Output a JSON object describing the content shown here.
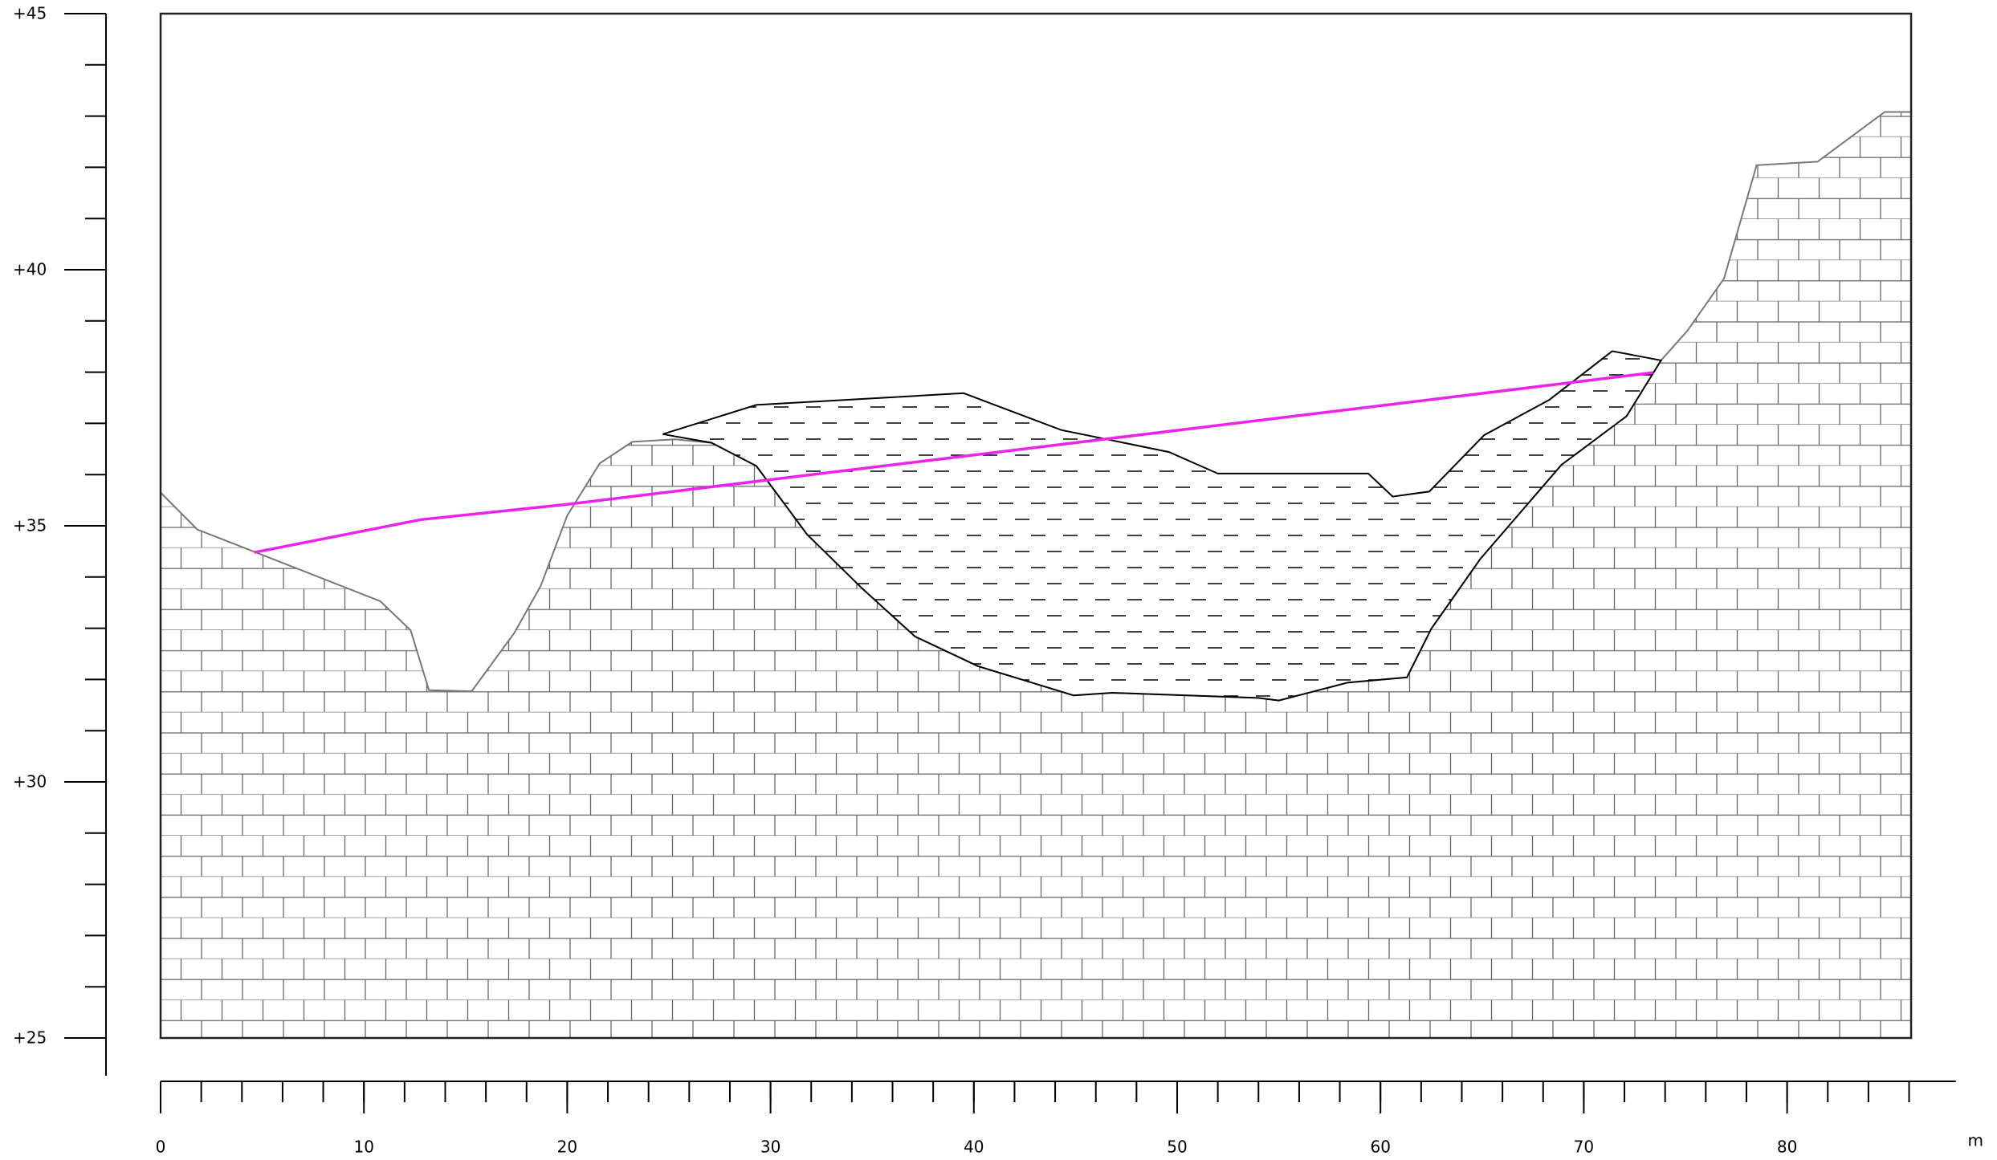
{
  "chart_data": {
    "type": "section",
    "xlim": [
      0,
      88.3
    ],
    "ylim": [
      25,
      45
    ],
    "xticks": [
      0,
      10,
      20,
      30,
      40,
      50,
      60,
      70,
      80
    ],
    "xminorticks": [
      0,
      2,
      4,
      6,
      8,
      10,
      12,
      14,
      16,
      18,
      20,
      22,
      24,
      26,
      28,
      30,
      32,
      34,
      36,
      38,
      40,
      42,
      44,
      46,
      48,
      50,
      52,
      54,
      56,
      58,
      60,
      62,
      64,
      66,
      68,
      70,
      72,
      74,
      76,
      78,
      80,
      82,
      84,
      86
    ],
    "xunit": "m",
    "yticks": [
      {
        "value": 45,
        "label": "+45"
      },
      {
        "value": 40,
        "label": "+40"
      },
      {
        "value": 35,
        "label": "+35"
      },
      {
        "value": 30,
        "label": "+30"
      },
      {
        "value": 25,
        "label": "+25"
      }
    ],
    "yminorticks": [
      25,
      26,
      27,
      28,
      29,
      30,
      31,
      32,
      33,
      34,
      35,
      36,
      37,
      38,
      39,
      40,
      41,
      42,
      43,
      44,
      45
    ],
    "section_end": 86.1,
    "ground": {
      "color": "#777777",
      "x": [
        0,
        1.8,
        10.8,
        12.3,
        13.2,
        15.3,
        17.4,
        18.7,
        20.0,
        21.6,
        23.2,
        25.3,
        27.1,
        29.3,
        31.8,
        34.5,
        37.1,
        40.2,
        44.9,
        46.8,
        54.0,
        55.0,
        58.4,
        61.3,
        62.5,
        64.9,
        68.9,
        72.1,
        73.8,
        75.1,
        76.9,
        78.5,
        81.5,
        84.8,
        86.1
      ],
      "values": [
        35.65,
        34.93,
        33.53,
        32.96,
        31.79,
        31.77,
        32.91,
        33.83,
        35.2,
        36.22,
        36.64,
        36.69,
        36.62,
        36.17,
        34.83,
        33.78,
        32.84,
        32.26,
        31.69,
        31.74,
        31.64,
        31.59,
        31.94,
        32.04,
        32.99,
        34.35,
        36.19,
        37.14,
        38.23,
        38.81,
        39.83,
        42.04,
        42.11,
        43.08,
        43.08
      ]
    },
    "lens": {
      "color": "#000000",
      "x": [
        24.7,
        29.3,
        39.5,
        44.3,
        49.6,
        52.0,
        59.4,
        60.6,
        62.4,
        65.1,
        68.3,
        71.4,
        73.8,
        72.1,
        68.9,
        64.9,
        62.5,
        61.3,
        58.4,
        55.0,
        54.0,
        46.8,
        44.9,
        40.2,
        37.1,
        34.5,
        31.8,
        29.3,
        27.1,
        24.7
      ],
      "values": [
        36.79,
        37.36,
        37.59,
        36.87,
        36.44,
        36.02,
        36.02,
        35.57,
        35.67,
        36.77,
        37.46,
        38.41,
        38.23,
        37.14,
        36.19,
        34.35,
        32.99,
        32.04,
        31.94,
        31.59,
        31.64,
        31.74,
        31.69,
        32.26,
        32.84,
        33.78,
        34.83,
        36.17,
        36.62,
        36.79
      ]
    },
    "level": {
      "color": "#ee22ee",
      "x": [
        4.6,
        12.8,
        20.0,
        73.4
      ],
      "values": [
        34.48,
        35.12,
        35.42,
        37.99
      ]
    }
  }
}
